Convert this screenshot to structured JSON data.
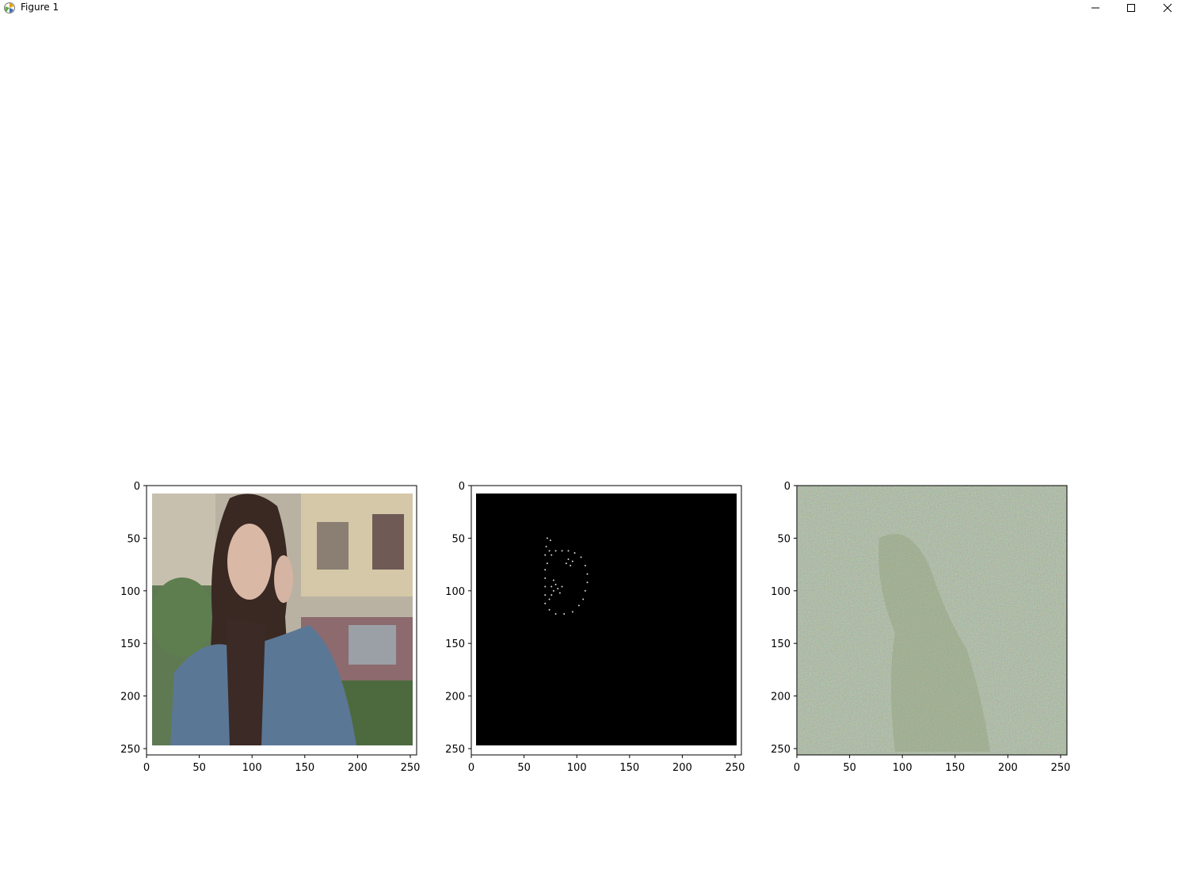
{
  "window": {
    "title": "Figure 1",
    "icons": {
      "app": "matplotlib-icon",
      "minimize": "minimize-icon",
      "maximize": "maximize-icon",
      "close": "close-icon"
    }
  },
  "chart_data": [
    {
      "type": "image",
      "content": "photo of a woman with long dark hair in a denim jacket on a street",
      "xticks": [
        0,
        50,
        100,
        150,
        200,
        250
      ],
      "yticks": [
        0,
        50,
        100,
        150,
        200,
        250
      ],
      "xlim": [
        0,
        256
      ],
      "ylim": [
        256,
        0
      ]
    },
    {
      "type": "image",
      "content": "facial landmark points on black background",
      "background": "#000000",
      "landmarks": [
        [
          72,
          50
        ],
        [
          75,
          52
        ],
        [
          71,
          58
        ],
        [
          74,
          62
        ],
        [
          70,
          66
        ],
        [
          76,
          66
        ],
        [
          80,
          62
        ],
        [
          86,
          62
        ],
        [
          92,
          62
        ],
        [
          98,
          64
        ],
        [
          104,
          68
        ],
        [
          108,
          76
        ],
        [
          110,
          84
        ],
        [
          110,
          92
        ],
        [
          108,
          100
        ],
        [
          106,
          108
        ],
        [
          102,
          114
        ],
        [
          96,
          120
        ],
        [
          88,
          122
        ],
        [
          80,
          122
        ],
        [
          74,
          118
        ],
        [
          70,
          112
        ],
        [
          70,
          104
        ],
        [
          70,
          96
        ],
        [
          70,
          88
        ],
        [
          70,
          80
        ],
        [
          72,
          74
        ],
        [
          90,
          74
        ],
        [
          92,
          70
        ],
        [
          96,
          72
        ],
        [
          94,
          76
        ],
        [
          78,
          90
        ],
        [
          80,
          94
        ],
        [
          76,
          96
        ],
        [
          78,
          100
        ],
        [
          82,
          98
        ],
        [
          86,
          96
        ],
        [
          84,
          102
        ],
        [
          76,
          104
        ],
        [
          74,
          108
        ]
      ],
      "xticks": [
        0,
        50,
        100,
        150,
        200,
        250
      ],
      "yticks": [
        0,
        50,
        100,
        150,
        200,
        250
      ],
      "xlim": [
        0,
        256
      ],
      "ylim": [
        256,
        0
      ]
    },
    {
      "type": "image",
      "content": "noisy greenish generated image with faint silhouette",
      "xticks": [
        0,
        50,
        100,
        150,
        200,
        250
      ],
      "yticks": [
        0,
        50,
        100,
        150,
        200,
        250
      ],
      "xlim": [
        0,
        256
      ],
      "ylim": [
        256,
        0
      ]
    }
  ]
}
